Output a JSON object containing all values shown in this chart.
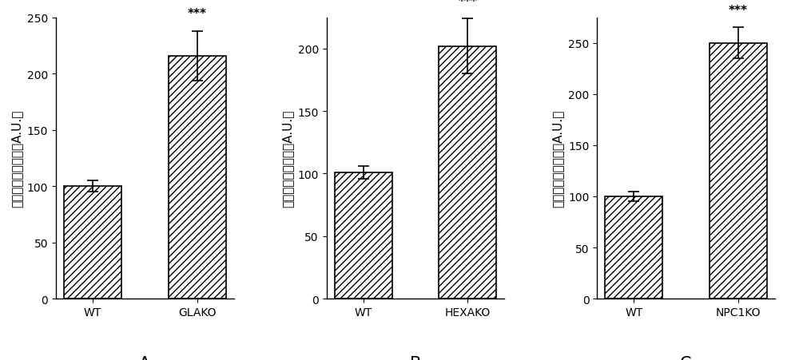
{
  "panels": [
    {
      "label": "A",
      "categories": [
        "WT",
        "GLAKO"
      ],
      "values": [
        100,
        216
      ],
      "errors": [
        5,
        22
      ],
      "ylim": [
        0,
        250
      ],
      "yticks": [
        0,
        50,
        100,
        150,
        200,
        250
      ]
    },
    {
      "label": "B",
      "categories": [
        "WT",
        "HEXAKO"
      ],
      "values": [
        101,
        202
      ],
      "errors": [
        5,
        22
      ],
      "ylim": [
        0,
        225
      ],
      "yticks": [
        0,
        50,
        100,
        150,
        200
      ]
    },
    {
      "label": "C",
      "categories": [
        "WT",
        "NPC1KO"
      ],
      "values": [
        100,
        250
      ],
      "errors": [
        5,
        15
      ],
      "ylim": [
        0,
        275
      ],
      "yticks": [
        0,
        50,
        100,
        150,
        200,
        250
      ]
    }
  ],
  "ylabel": "溶酶体胆固醇总量（A.U.）",
  "hatch_pattern": "////",
  "bar_color": "white",
  "bar_edgecolor": "black",
  "sig_text": "***",
  "fig_width": 10.0,
  "fig_height": 4.52,
  "background_color": "white"
}
